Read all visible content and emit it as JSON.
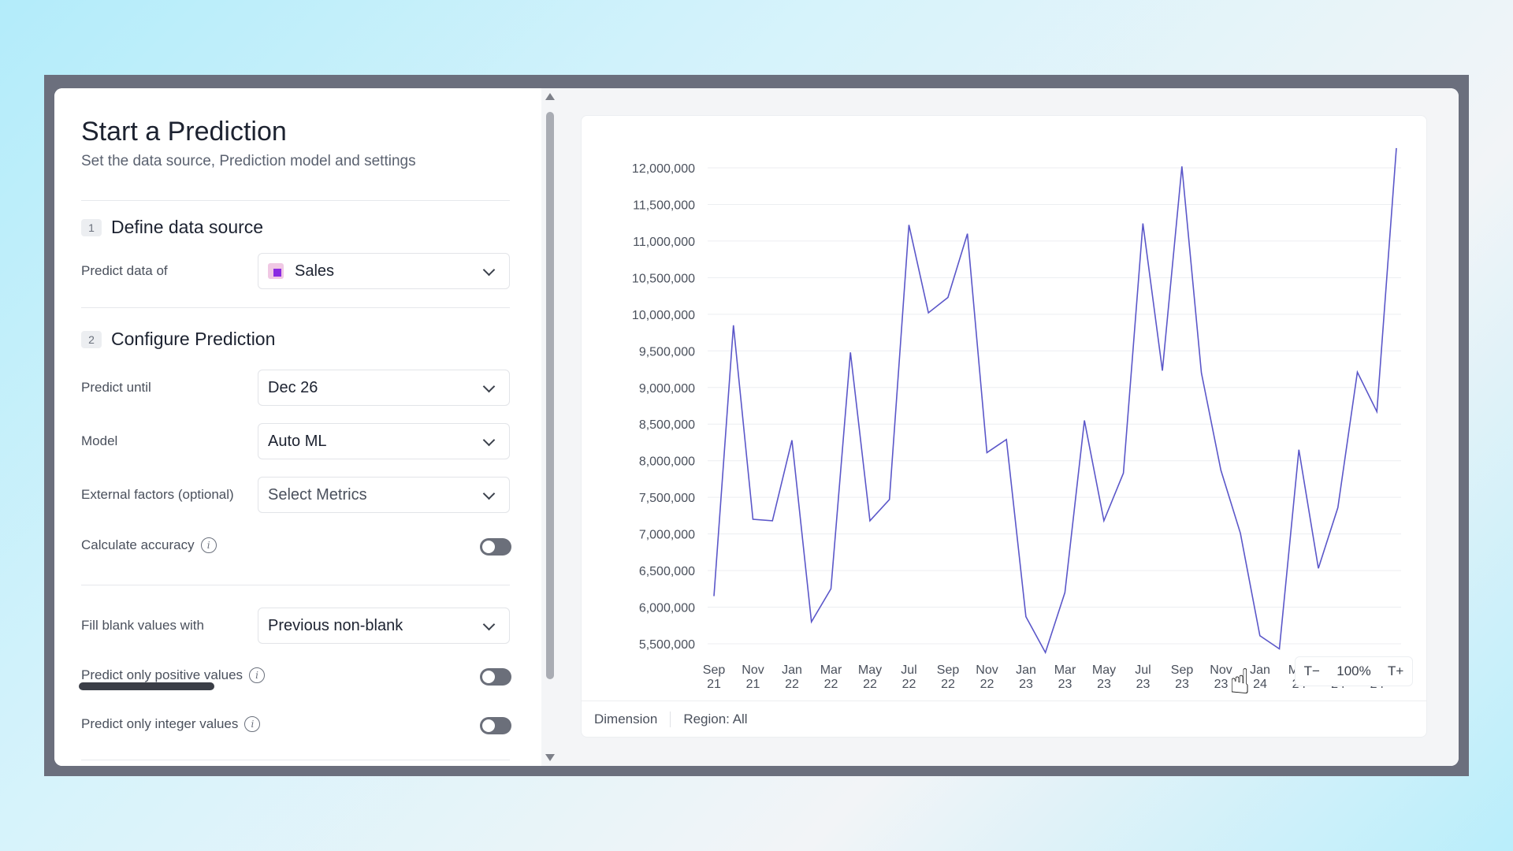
{
  "panel": {
    "title": "Start a Prediction",
    "subtitle": "Set the data source, Prediction model and settings"
  },
  "section1": {
    "num": "1",
    "title": "Define data source",
    "predict_label": "Predict data of",
    "predict_value": "Sales"
  },
  "section2": {
    "num": "2",
    "title": "Configure Prediction",
    "until_label": "Predict until",
    "until_value": "Dec 26",
    "model_label": "Model",
    "model_value": "Auto ML",
    "external_label": "External factors (optional)",
    "external_placeholder": "Select Metrics",
    "accuracy_label": "Calculate accuracy"
  },
  "settings": {
    "fill_label": "Fill blank values with",
    "fill_value": "Previous non-blank",
    "positive_label": "Predict only positive values",
    "integer_label": "Predict only integer values"
  },
  "toggles": {
    "accuracy": false,
    "positive": false,
    "integer": false
  },
  "footer": {
    "dimension": "Dimension",
    "region": "Region: All"
  },
  "zoom": {
    "minus": "T−",
    "level": "100%",
    "plus": "T+"
  },
  "colors": {
    "line": "#5b57c9",
    "accent": "#8a2be2"
  },
  "chart_data": {
    "type": "line",
    "title": "",
    "xlabel": "",
    "ylabel": "",
    "ylim": [
      5500000,
      12000000
    ],
    "yticks": [
      "12,000,000",
      "11,500,000",
      "11,000,000",
      "10,500,000",
      "10,000,000",
      "9,500,000",
      "9,000,000",
      "8,500,000",
      "8,000,000",
      "7,500,000",
      "7,000,000",
      "6,500,000",
      "6,000,000",
      "5,500,000"
    ],
    "xticks": [
      [
        "Sep",
        "21"
      ],
      [
        "Nov",
        "21"
      ],
      [
        "Jan",
        "22"
      ],
      [
        "Mar",
        "22"
      ],
      [
        "May",
        "22"
      ],
      [
        "Jul",
        "22"
      ],
      [
        "Sep",
        "22"
      ],
      [
        "Nov",
        "22"
      ],
      [
        "Jan",
        "23"
      ],
      [
        "Mar",
        "23"
      ],
      [
        "May",
        "23"
      ],
      [
        "Jul",
        "23"
      ],
      [
        "Sep",
        "23"
      ],
      [
        "Nov",
        "23"
      ],
      [
        "Jan",
        "24"
      ],
      [
        "Mar",
        "24"
      ],
      [
        "May",
        "24"
      ],
      [
        "Jul",
        "24"
      ]
    ],
    "grid": true,
    "series": [
      {
        "values": [
          6150000,
          9850000,
          7200000,
          7180000,
          8280000,
          5800000,
          6250000,
          9480000,
          7180000,
          7470000,
          11220000,
          10020000,
          10230000,
          11100000,
          8110000,
          8290000,
          5870000,
          5380000,
          6200000,
          8550000,
          7180000,
          7830000,
          11240000,
          9230000,
          12020000,
          9200000,
          7870000,
          7010000,
          5610000,
          5430000,
          8150000,
          6530000,
          7360000,
          9210000,
          8670000,
          12270000
        ]
      }
    ]
  }
}
